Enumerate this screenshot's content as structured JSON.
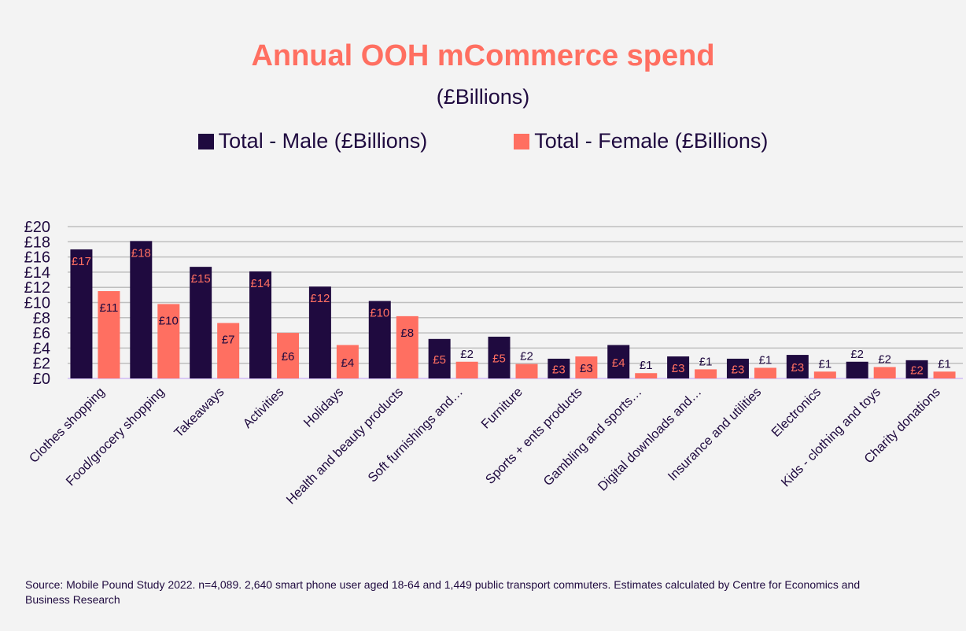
{
  "chart_data": {
    "type": "bar",
    "title": "Annual OOH mCommerce spend",
    "subtitle": "(£Billions)",
    "xlabel": "",
    "ylabel": "",
    "ylim": [
      0,
      20
    ],
    "yticks": [
      0,
      2,
      4,
      6,
      8,
      10,
      12,
      14,
      16,
      18,
      20
    ],
    "ytick_labels": [
      "£0",
      "£2",
      "£4",
      "£6",
      "£8",
      "£10",
      "£12",
      "£14",
      "£16",
      "£18",
      "£20"
    ],
    "grid": true,
    "legend_position": "top-center",
    "categories": [
      "Clothes shopping",
      "Food/grocery shopping",
      "Takeaways",
      "Activities",
      "Holidays",
      "Health and beauty products",
      "Soft furnishings and…",
      "Furniture",
      "Sports + ents products",
      "Gambling and sports…",
      "Digital downloads and…",
      "Insurance and utilities",
      "Electronics",
      "Kids - clothing and toys",
      "Charity donations"
    ],
    "series": [
      {
        "name": "Total - Male (£Billions)",
        "color": "#1f0a3f",
        "label_color": "#ff6f61",
        "values": [
          17.0,
          18.1,
          14.7,
          14.1,
          12.1,
          10.2,
          5.2,
          5.5,
          2.6,
          4.4,
          2.9,
          2.6,
          3.1,
          2.2,
          2.4
        ],
        "labels": [
          "£17",
          "£18",
          "£15",
          "£14",
          "£12",
          "£10",
          "£5",
          "£5",
          "£3",
          "£4",
          "£3",
          "£3",
          "£3",
          "£2",
          "£2"
        ]
      },
      {
        "name": "Total - Female (£Billions)",
        "color": "#ff6f61",
        "label_color": "#1f0a3f",
        "values": [
          11.5,
          9.8,
          7.3,
          6.0,
          4.4,
          8.2,
          2.2,
          1.9,
          2.9,
          0.7,
          1.2,
          1.4,
          0.9,
          1.5,
          0.9
        ],
        "labels": [
          "£11",
          "£10",
          "£7",
          "£6",
          "£4",
          "£8",
          "£2",
          "£2",
          "£3",
          "£1",
          "£1",
          "£1",
          "£1",
          "£2",
          "£1"
        ]
      }
    ]
  },
  "footer": {
    "source": "Source: Mobile Pound Study 2022. n=4,089. 2,640 smart phone user aged 18-64 and 1,449 public transport commuters. Estimates calculated by Centre for Economics and Business Research"
  }
}
